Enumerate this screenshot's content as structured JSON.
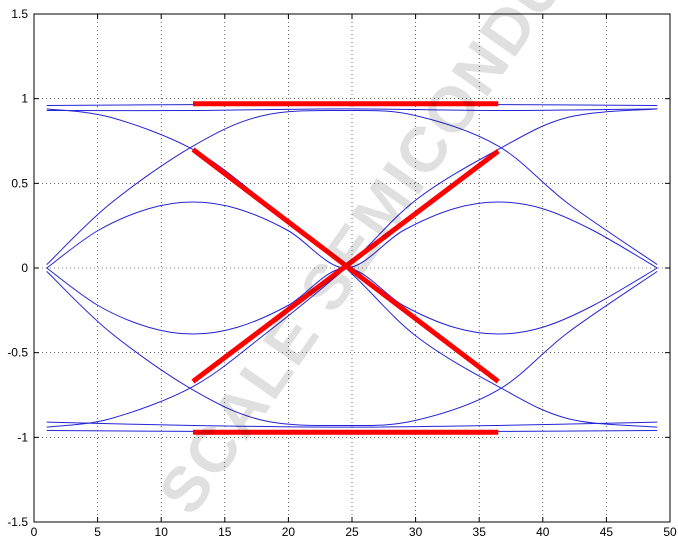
{
  "chart_data": {
    "type": "line",
    "title": "",
    "xlabel": "",
    "ylabel": "",
    "xlim": [
      0,
      50
    ],
    "ylim": [
      -1.5,
      1.5
    ],
    "x_ticks": [
      "0",
      "5",
      "10",
      "15",
      "20",
      "25",
      "30",
      "35",
      "40",
      "45",
      "50"
    ],
    "y_ticks": [
      "1.5",
      "1",
      "0.5",
      "0",
      "-0.5",
      "-1",
      "-1.5"
    ],
    "grid": true,
    "colors": {
      "traces": "#2424d6",
      "overlay": "#ff0000"
    },
    "traces": [
      {
        "x": [
          1,
          12.5,
          24.5,
          36.5,
          49
        ],
        "y": [
          0.96,
          0.965,
          0.97,
          0.965,
          0.96
        ]
      },
      {
        "x": [
          1,
          12.5,
          24.5,
          36.5,
          49
        ],
        "y": [
          0.93,
          0.93,
          0.94,
          0.93,
          0.94
        ]
      },
      {
        "x": [
          1,
          12.5,
          24.5,
          36.5,
          49
        ],
        "y": [
          -0.96,
          -0.965,
          -0.97,
          -0.965,
          -0.96
        ]
      },
      {
        "x": [
          1,
          12.5,
          24.5,
          36.5,
          49
        ],
        "y": [
          -0.91,
          -0.93,
          -0.94,
          -0.93,
          -0.91
        ]
      },
      {
        "x": [
          1,
          6,
          12.5,
          18,
          24.5,
          30,
          36.5,
          42,
          49
        ],
        "y": [
          0.02,
          0.38,
          0.72,
          0.9,
          0.93,
          0.9,
          0.72,
          0.38,
          0.02
        ]
      },
      {
        "x": [
          1,
          6,
          12.5,
          18,
          24.5,
          30,
          36.5,
          42,
          49
        ],
        "y": [
          -0.02,
          -0.38,
          -0.72,
          -0.9,
          -0.93,
          -0.9,
          -0.72,
          -0.38,
          -0.02
        ]
      },
      {
        "x": [
          1,
          6,
          12.5,
          18,
          24.5,
          30,
          36.5,
          42,
          49
        ],
        "y": [
          0.94,
          0.89,
          0.7,
          0.4,
          0.0,
          -0.4,
          -0.7,
          -0.89,
          -0.94
        ]
      },
      {
        "x": [
          1,
          6,
          12.5,
          18,
          24.5,
          30,
          36.5,
          42,
          49
        ],
        "y": [
          -0.94,
          -0.89,
          -0.7,
          -0.4,
          0.0,
          0.4,
          0.7,
          0.89,
          0.94
        ]
      },
      {
        "x": [
          1,
          5,
          9,
          12.5,
          16,
          20,
          24.5,
          29,
          33,
          36.5,
          40,
          44,
          49
        ],
        "y": [
          0.0,
          0.22,
          0.35,
          0.39,
          0.35,
          0.22,
          0.0,
          0.22,
          0.35,
          0.39,
          0.35,
          0.22,
          0.0
        ]
      },
      {
        "x": [
          1,
          5,
          9,
          12.5,
          16,
          20,
          24.5,
          29,
          33,
          36.5,
          40,
          44,
          49
        ],
        "y": [
          0.0,
          -0.22,
          -0.35,
          -0.39,
          -0.35,
          -0.22,
          0.0,
          -0.22,
          -0.35,
          -0.39,
          -0.35,
          -0.22,
          0.0
        ]
      }
    ],
    "overlay_lines": [
      {
        "x": [
          12.5,
          36.5
        ],
        "y": [
          0.97,
          0.97
        ]
      },
      {
        "x": [
          12.5,
          36.5
        ],
        "y": [
          -0.97,
          -0.97
        ]
      },
      {
        "x": [
          12.5,
          36.5
        ],
        "y": [
          0.7,
          -0.67
        ]
      },
      {
        "x": [
          12.5,
          36.5
        ],
        "y": [
          -0.67,
          0.69
        ]
      }
    ]
  },
  "watermark": {
    "text": "SCALE SEMICONDU",
    "logo_note": "watermark lettering reproduced as a picture"
  }
}
